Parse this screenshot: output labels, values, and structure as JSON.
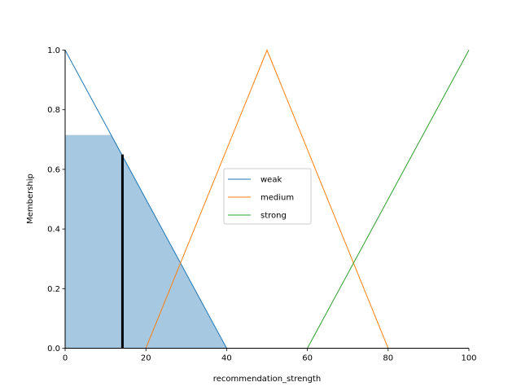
{
  "chart_data": {
    "type": "line",
    "xlabel": "recommendation_strength",
    "ylabel": "Membership",
    "xlim": [
      0,
      100
    ],
    "ylim": [
      0,
      1.0
    ],
    "x_ticks": [
      "0",
      "20",
      "40",
      "60",
      "80",
      "100"
    ],
    "y_ticks": [
      "0.0",
      "0.2",
      "0.4",
      "0.6",
      "0.8",
      "1.0"
    ],
    "grid": false,
    "legend_position": "center",
    "series": [
      {
        "name": "weak",
        "color": "#1f77b4",
        "points": [
          [
            0,
            1.0
          ],
          [
            40,
            0.0
          ],
          [
            100,
            0.0
          ]
        ]
      },
      {
        "name": "medium",
        "color": "#ff7f0e",
        "points": [
          [
            0,
            0.0
          ],
          [
            20,
            0.0
          ],
          [
            50,
            1.0
          ],
          [
            80,
            0.0
          ],
          [
            100,
            0.0
          ]
        ]
      },
      {
        "name": "strong",
        "color": "#2ca02c",
        "points": [
          [
            0,
            0.0
          ],
          [
            60,
            0.0
          ],
          [
            100,
            1.0
          ]
        ]
      }
    ],
    "activation": {
      "color": "#a6c8e1",
      "points": [
        [
          0,
          0.0
        ],
        [
          0,
          0.715
        ],
        [
          11.5,
          0.715
        ],
        [
          40,
          0.0
        ]
      ]
    },
    "defuzzified": {
      "x": 14.2,
      "y": 0.65,
      "color": "#000000"
    }
  }
}
